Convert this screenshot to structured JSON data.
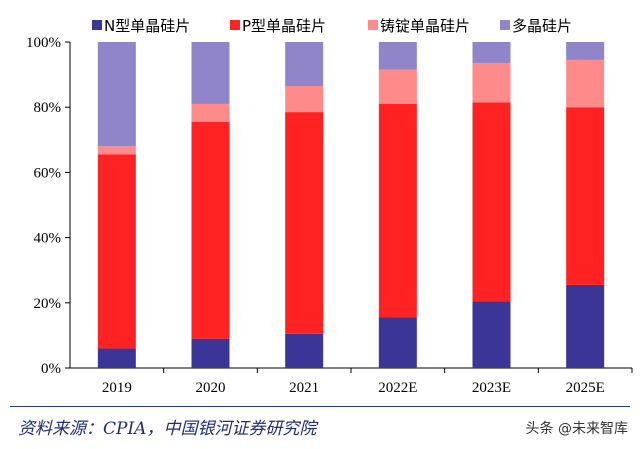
{
  "chart_data": {
    "type": "bar",
    "stacked": true,
    "categories": [
      "2019",
      "2020",
      "2021",
      "2022E",
      "2023E",
      "2025E"
    ],
    "series": [
      {
        "name": "N型单晶硅片",
        "color": "#3c3598",
        "values": [
          6,
          9,
          10.5,
          15.5,
          20.5,
          25.5
        ]
      },
      {
        "name": "P型单晶硅片",
        "color": "#ff2222",
        "values": [
          59.5,
          66.5,
          68,
          65.5,
          61,
          54.5
        ]
      },
      {
        "name": "铸锭单晶硅片",
        "color": "#ff8a8a",
        "values": [
          2.5,
          5.5,
          8,
          10.5,
          12,
          14.5
        ]
      },
      {
        "name": "多晶硅片",
        "color": "#8f85c8",
        "values": [
          32,
          19,
          13.5,
          8.5,
          6.5,
          5.5
        ]
      }
    ],
    "yticks": [
      "0%",
      "20%",
      "40%",
      "60%",
      "80%",
      "100%"
    ],
    "ylim": [
      0,
      100
    ],
    "legend_position": "top",
    "grid": false
  },
  "source": "资料来源：CPIA，中国银河证券研究院",
  "watermark": "头条 @未来智库"
}
